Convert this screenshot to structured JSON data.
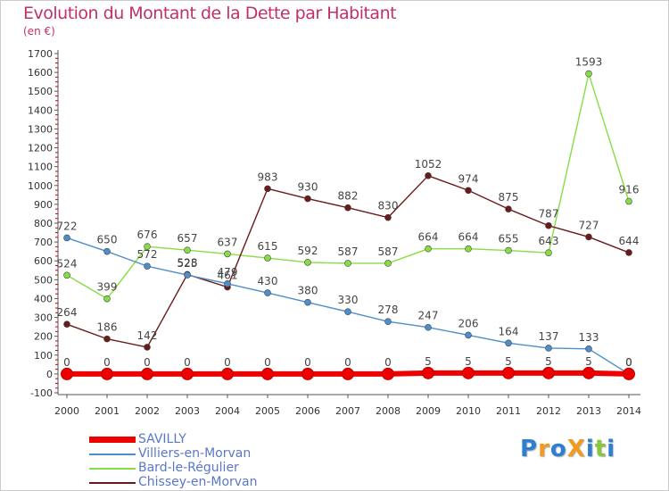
{
  "title": "Evolution du Montant de la Dette par Habitant",
  "subtitle": "(en €)",
  "logo_text": "ProXiti",
  "chart_data": {
    "type": "line",
    "title": "Evolution du Montant de la Dette par Habitant",
    "subtitle": "(en €)",
    "xlabel": "",
    "ylabel": "",
    "ylim": [
      -100,
      1700
    ],
    "yticks": [
      -100,
      0,
      100,
      200,
      300,
      400,
      500,
      600,
      700,
      800,
      900,
      1000,
      1100,
      1200,
      1300,
      1400,
      1500,
      1600,
      1700
    ],
    "categories": [
      "2000",
      "2001",
      "2002",
      "2003",
      "2004",
      "2005",
      "2006",
      "2007",
      "2008",
      "2009",
      "2010",
      "2011",
      "2012",
      "2013",
      "2014"
    ],
    "grid": false,
    "legend_position": "bottom-left",
    "series": [
      {
        "name": "SAVILLY",
        "color": "#ee0000",
        "values": [
          0,
          0,
          0,
          0,
          0,
          0,
          0,
          0,
          0,
          5,
          5,
          5,
          5,
          5,
          0
        ]
      },
      {
        "name": "Villiers-en-Morvan",
        "color": "#4d8fcc",
        "values": [
          722,
          650,
          572,
          525,
          479,
          430,
          380,
          330,
          278,
          247,
          206,
          164,
          137,
          133,
          0
        ]
      },
      {
        "name": "Bard-le-Régulier",
        "color": "#88dd44",
        "values": [
          524,
          399,
          676,
          657,
          637,
          615,
          592,
          587,
          587,
          664,
          664,
          655,
          643,
          1593,
          916
        ]
      },
      {
        "name": "Chissey-en-Morvan",
        "color": "#6b1a1a",
        "values": [
          264,
          186,
          142,
          528,
          461,
          983,
          930,
          882,
          830,
          1052,
          974,
          875,
          787,
          727,
          644
        ]
      }
    ]
  }
}
